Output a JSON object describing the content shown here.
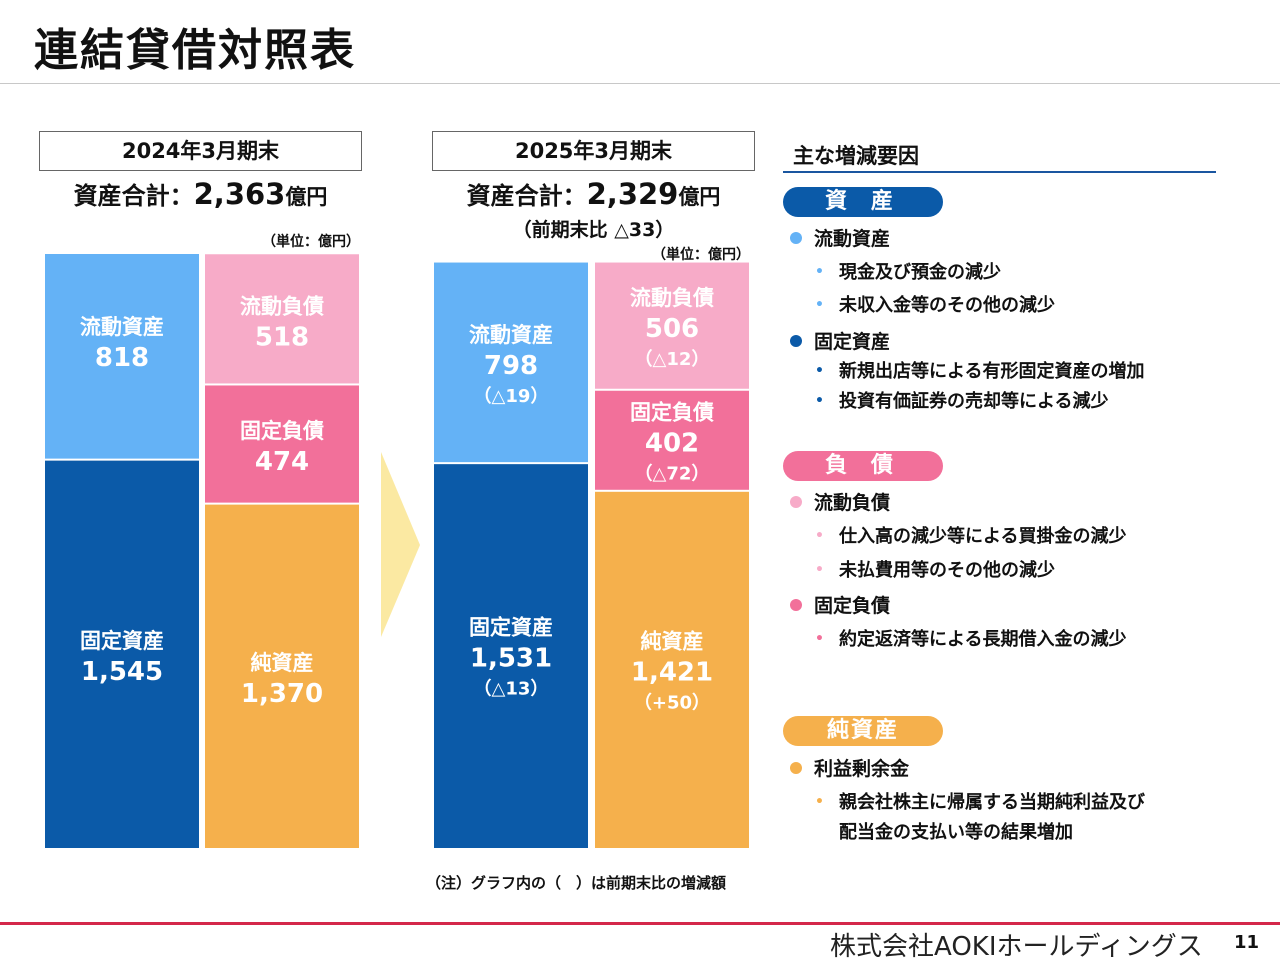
{
  "title": "連結貸借対照表",
  "unit_note": "（単位：億円）",
  "periods": [
    {
      "label": "2024年3月期末",
      "total_prefix": "資産合計：",
      "total_value": "2,363",
      "total_unit": "億円",
      "total_sub": ""
    },
    {
      "label": "2025年3月期末",
      "total_prefix": "資産合計：",
      "total_value": "2,329",
      "total_unit": "億円",
      "total_sub": "（前期末比 △33）"
    }
  ],
  "chart_data": {
    "type": "stacked-bar",
    "colors": {
      "流動資産": "#64b2f6",
      "固定資産": "#0b5aa8",
      "流動負債": "#f7abc8",
      "固定負債": "#f2709a",
      "純資産": "#f5b04c"
    },
    "stacks": [
      {
        "period": "2024年3月期末",
        "side": "assets",
        "segments": [
          {
            "name": "流動資産",
            "value": 818,
            "change": ""
          },
          {
            "name": "固定資産",
            "value": 1545,
            "change": ""
          }
        ]
      },
      {
        "period": "2024年3月期末",
        "side": "liabilities",
        "segments": [
          {
            "name": "流動負債",
            "value": 518,
            "change": ""
          },
          {
            "name": "固定負債",
            "value": 474,
            "change": ""
          },
          {
            "name": "純資産",
            "value": 1370,
            "change": ""
          }
        ]
      },
      {
        "period": "2025年3月期末",
        "side": "assets",
        "segments": [
          {
            "name": "流動資産",
            "value": 798,
            "change": "（△19）"
          },
          {
            "name": "固定資産",
            "value": 1531,
            "change": "（△13）"
          }
        ]
      },
      {
        "period": "2025年3月期末",
        "side": "liabilities",
        "segments": [
          {
            "name": "流動負債",
            "value": 506,
            "change": "（△12）"
          },
          {
            "name": "固定負債",
            "value": 402,
            "change": "（△72）"
          },
          {
            "name": "純資産",
            "value": 1421,
            "change": "（+50）"
          }
        ]
      }
    ]
  },
  "arrow_color": "#fbe9a2",
  "note": "（注）グラフ内の（　）は前期末比の増減額",
  "factors": {
    "title": "主な増減要因",
    "categories": [
      {
        "label": "資 産",
        "color": "#0b5aa8",
        "items": [
          {
            "label": "流動資産",
            "color": "#64b2f6",
            "subs": [
              "現金及び預金の減少",
              "未収入金等のその他の減少"
            ]
          },
          {
            "label": "固定資産",
            "color": "#0b5aa8",
            "subs": [
              "新規出店等による有形固定資産の増加",
              "投資有価証券の売却等による減少"
            ]
          }
        ]
      },
      {
        "label": "負 債",
        "color": "#f2709a",
        "items": [
          {
            "label": "流動負債",
            "color": "#f7abc8",
            "subs": [
              "仕入高の減少等による買掛金の減少",
              "未払費用等のその他の減少"
            ]
          },
          {
            "label": "固定負債",
            "color": "#f2709a",
            "subs": [
              "約定返済等による長期借入金の減少"
            ]
          }
        ]
      },
      {
        "label": "純資産",
        "color": "#f5b04c",
        "items": [
          {
            "label": "利益剰余金",
            "color": "#f5b04c",
            "subs": [
              "親会社株主に帰属する当期純利益及び",
              "配当金の支払い等の結果増加"
            ]
          }
        ]
      }
    ]
  },
  "footer": {
    "company": "株式会社AOKIホールディングス",
    "page": "11"
  }
}
